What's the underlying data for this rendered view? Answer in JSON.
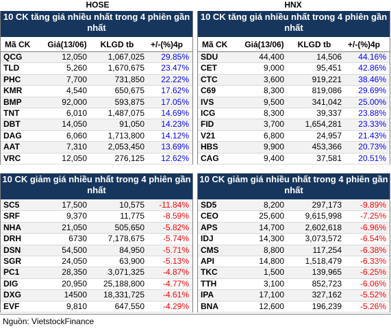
{
  "exchanges": [
    "HOSE",
    "HNX"
  ],
  "gain_title": "10 CK tăng giá nhiều nhất trong 4 phiên gần nhất",
  "loss_title": "10 CK giảm giá nhiều nhất trong 4 phiên gần nhất",
  "columns": [
    "Mã CK",
    "Giá(13/06)",
    "KLGD tb",
    "+/-(%)4p"
  ],
  "hose_gain": [
    [
      "QCG",
      "12,050",
      "1,067,025",
      "29.85%"
    ],
    [
      "TLD",
      "5,260",
      "1,670,675",
      "23.47%"
    ],
    [
      "PHC",
      "7,700",
      "731,850",
      "22.22%"
    ],
    [
      "KMR",
      "4,540",
      "650,675",
      "17.62%"
    ],
    [
      "BMP",
      "92,000",
      "593,875",
      "17.05%"
    ],
    [
      "TNT",
      "6,010",
      "1,487,075",
      "14.69%"
    ],
    [
      "DBT",
      "14,050",
      "91,050",
      "14.23%"
    ],
    [
      "DAG",
      "6,060",
      "1,713,800",
      "14.12%"
    ],
    [
      "AAT",
      "7,310",
      "2,053,450",
      "13.69%"
    ],
    [
      "VRC",
      "12,050",
      "276,125",
      "12.62%"
    ]
  ],
  "hnx_gain": [
    [
      "SDU",
      "44,400",
      "14,506",
      "44.16%"
    ],
    [
      "CET",
      "9,000",
      "95,451",
      "42.86%"
    ],
    [
      "CTC",
      "3,600",
      "919,221",
      "38.46%"
    ],
    [
      "C69",
      "8,300",
      "819,086",
      "29.69%"
    ],
    [
      "IVS",
      "9,500",
      "341,042",
      "25.00%"
    ],
    [
      "ICG",
      "8,300",
      "39,337",
      "23.88%"
    ],
    [
      "FID",
      "3,700",
      "1,654,281",
      "23.33%"
    ],
    [
      "V21",
      "6,800",
      "24,957",
      "21.43%"
    ],
    [
      "HBS",
      "9,900",
      "453,366",
      "20.73%"
    ],
    [
      "CAG",
      "9,400",
      "37,581",
      "20.51%"
    ]
  ],
  "hose_loss": [
    [
      "SC5",
      "17,500",
      "10,575",
      "-11.84%"
    ],
    [
      "SRF",
      "9,370",
      "11,775",
      "-8.59%"
    ],
    [
      "NHA",
      "21,050",
      "505,650",
      "-5.82%"
    ],
    [
      "DRH",
      "6730",
      "7,178,675",
      "-5.74%"
    ],
    [
      "DSN",
      "54,500",
      "84,950",
      "-5.71%"
    ],
    [
      "SGR",
      "24,050",
      "63,900",
      "-5.13%"
    ],
    [
      "PC1",
      "28,350",
      "3,071,325",
      "-4.87%"
    ],
    [
      "DIG",
      "20,950",
      "25,188,800",
      "-4.77%"
    ],
    [
      "DXG",
      "14500",
      "18,331,725",
      "-4.61%"
    ],
    [
      "EVF",
      "9,810",
      "647,550",
      "-4.29%"
    ]
  ],
  "hnx_loss": [
    [
      "SD5",
      "8,200",
      "297,173",
      "-9.89%"
    ],
    [
      "CEO",
      "25,600",
      "9,615,998",
      "-7.25%"
    ],
    [
      "APS",
      "14,700",
      "2,602,618",
      "-6.96%"
    ],
    [
      "IDJ",
      "14,300",
      "3,073,572",
      "-6.54%"
    ],
    [
      "CMS",
      "8,800",
      "117,254",
      "-6.38%"
    ],
    [
      "API",
      "14,800",
      "1,518,479",
      "-6.33%"
    ],
    [
      "TKC",
      "1,500",
      "139,965",
      "-6.25%"
    ],
    [
      "TTH",
      "3,100",
      "852,723",
      "-6.06%"
    ],
    [
      "IPA",
      "17,100",
      "327,162",
      "-5.52%"
    ],
    [
      "BNA",
      "12,600",
      "196,239",
      "-5.26%"
    ]
  ],
  "source": "Nguồn: VietstockFinance",
  "colors": {
    "header_bg": "#17365d",
    "gain": "#0000ff",
    "loss": "#ff0000"
  }
}
